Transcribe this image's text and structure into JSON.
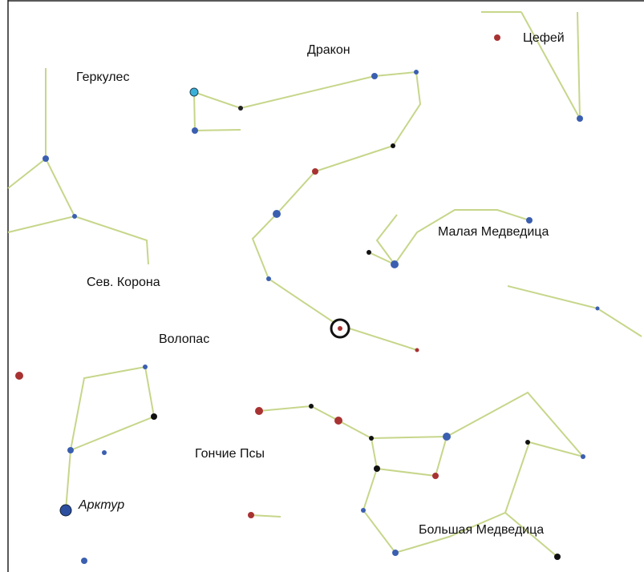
{
  "labels": [
    "Дракон",
    "Цефей",
    "Геркулес",
    "Малая Медведица",
    "Сев. Корона",
    "Волопас",
    "Гончие Псы",
    "Арктур",
    "Большая Медведица"
  ]
}
